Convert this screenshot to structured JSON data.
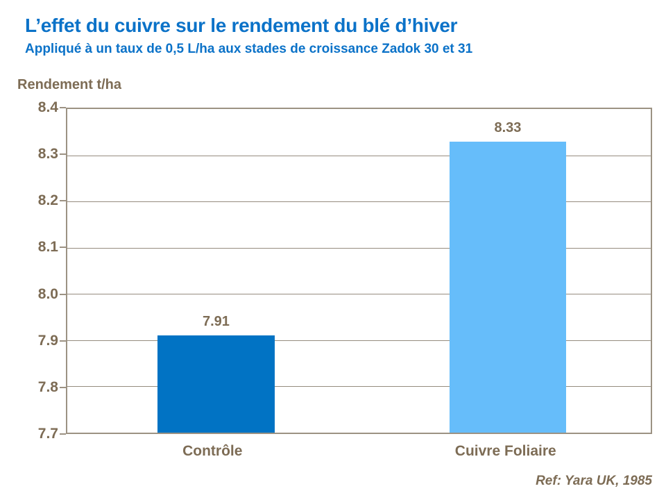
{
  "chart_data": {
    "type": "bar",
    "title": "L’effet du cuivre sur le rendement du blé d’hiver",
    "subtitle": "Appliqué à un taux de 0,5 L/ha aux stades de croissance Zadok 30 et 31",
    "ylabel": "Rendement t/ha",
    "xlabel": "",
    "categories": [
      "Contrôle",
      "Cuivre Foliaire"
    ],
    "values": [
      7.91,
      8.33
    ],
    "value_labels": [
      "7.91",
      "8.33"
    ],
    "bar_colors": [
      "#0173c4",
      "#66bdfa"
    ],
    "ylim": [
      7.7,
      8.4
    ],
    "yticks": [
      "8.4",
      "8.3",
      "8.2",
      "8.1",
      "8.0",
      "7.9",
      "7.8",
      "7.7"
    ],
    "grid": true,
    "legend": "none",
    "source": "Ref: Yara UK, 1985"
  },
  "colors": {
    "title_blue": "#0b72c8",
    "text_brown": "#7d6c55",
    "axis_border": "#9c9283",
    "gridline": "#958c7e",
    "background": "#ffffff"
  }
}
